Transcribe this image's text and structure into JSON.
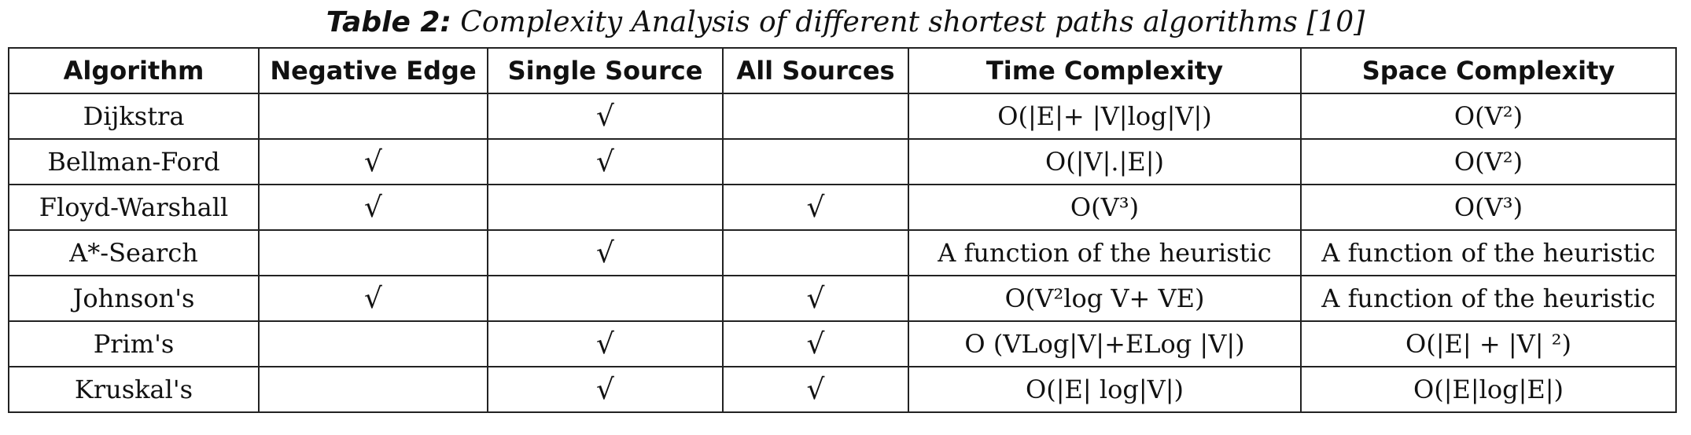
{
  "caption": {
    "label": "Table 2:",
    "text": " Complexity Analysis of different shortest paths algorithms [10]"
  },
  "table": {
    "headers": [
      "Algorithm",
      "Negative Edge",
      "Single Source",
      "All Sources",
      "Time Complexity",
      "Space Complexity"
    ],
    "rows": [
      [
        "Dijkstra",
        "",
        "√",
        "",
        "O(|E|+ |V|log|V|)",
        "O(V²)"
      ],
      [
        "Bellman-Ford",
        "√",
        "√",
        "",
        "O(|V|.|E|)",
        "O(V²)"
      ],
      [
        "Floyd-Warshall",
        "√",
        "",
        "√",
        "O(V³)",
        "O(V³)"
      ],
      [
        "A*-Search",
        "",
        "√",
        "",
        "A function of the heuristic",
        "A function of the heuristic"
      ],
      [
        "Johnson's",
        "√",
        "",
        "√",
        "O(V²log V+ VE)",
        "A function of the heuristic"
      ],
      [
        "Prim's",
        "",
        "√",
        "√",
        "O (VLog|V|+ELog |V|)",
        "O(|E| + |V| ²)"
      ],
      [
        "Kruskal's",
        "",
        "√",
        "√",
        "O(|E| log|V|)",
        "O(|E|log|E|)"
      ]
    ]
  }
}
